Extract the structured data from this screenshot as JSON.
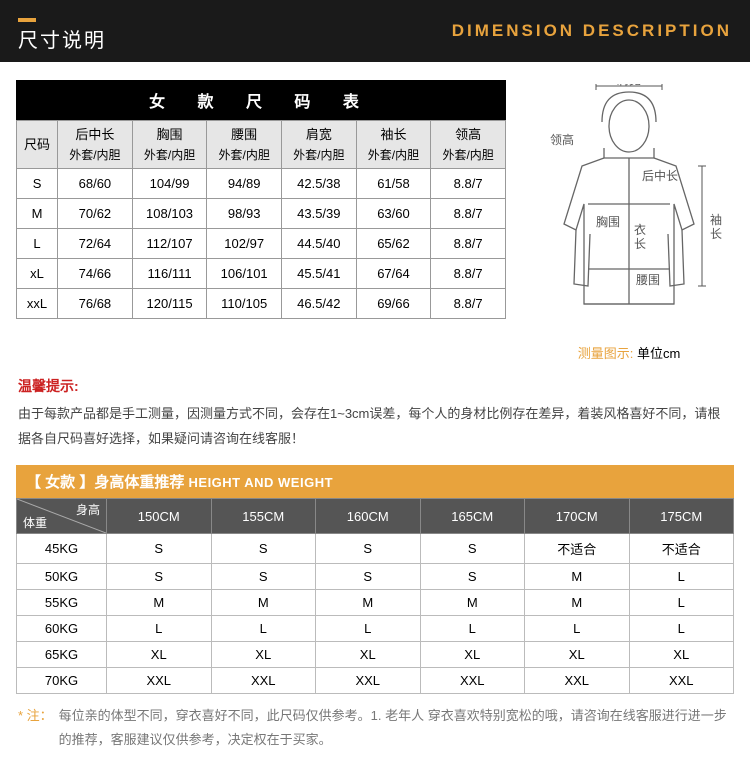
{
  "header": {
    "title_cn": "尺寸说明",
    "title_en": "DIMENSION DESCRIPTION"
  },
  "size_table": {
    "caption": "女 款 尺 码 表",
    "columns": [
      {
        "top": "尺码",
        "sub": ""
      },
      {
        "top": "后中长",
        "sub": "外套/内胆"
      },
      {
        "top": "胸围",
        "sub": "外套/内胆"
      },
      {
        "top": "腰围",
        "sub": "外套/内胆"
      },
      {
        "top": "肩宽",
        "sub": "外套/内胆"
      },
      {
        "top": "袖长",
        "sub": "外套/内胆"
      },
      {
        "top": "领高",
        "sub": "外套/内胆"
      }
    ],
    "rows": [
      [
        "S",
        "68/60",
        "104/99",
        "94/89",
        "42.5/38",
        "61/58",
        "8.8/7"
      ],
      [
        "M",
        "70/62",
        "108/103",
        "98/93",
        "43.5/39",
        "63/60",
        "8.8/7"
      ],
      [
        "L",
        "72/64",
        "112/107",
        "102/97",
        "44.5/40",
        "65/62",
        "8.8/7"
      ],
      [
        "xL",
        "74/66",
        "116/111",
        "106/101",
        "45.5/41",
        "67/64",
        "8.8/7"
      ],
      [
        "xxL",
        "76/68",
        "120/115",
        "110/105",
        "46.5/42",
        "69/66",
        "8.8/7"
      ]
    ]
  },
  "diagram": {
    "labels": {
      "shoulder": "肩宽",
      "collar": "领高",
      "back_length": "后中长",
      "chest": "胸围",
      "body_length": "衣长",
      "sleeve": "袖长",
      "waist": "腰围"
    },
    "caption_prefix": "测量图示:",
    "caption_unit": "单位cm"
  },
  "tip": {
    "title": "温馨提示:",
    "text": "由于每款产品都是手工测量，因测量方式不同，会存在1~3cm误差，每个人的身材比例存在差异，着装风格喜好不同，请根据各自尺码喜好选择，如果疑问请咨询在线客服！"
  },
  "recommend": {
    "bar_cn": "【 女款 】身高体重推荐",
    "bar_en": "HEIGHT AND WEIGHT",
    "diag_height": "身高",
    "diag_weight": "体重",
    "heights": [
      "150CM",
      "155CM",
      "160CM",
      "165CM",
      "170CM",
      "175CM"
    ],
    "weights": [
      "45KG",
      "50KG",
      "55KG",
      "60KG",
      "65KG",
      "70KG"
    ],
    "grid": [
      [
        "S",
        "S",
        "S",
        "S",
        "不适合",
        "不适合"
      ],
      [
        "S",
        "S",
        "S",
        "S",
        "M",
        "L"
      ],
      [
        "M",
        "M",
        "M",
        "M",
        "M",
        "L"
      ],
      [
        "L",
        "L",
        "L",
        "L",
        "L",
        "L"
      ],
      [
        "XL",
        "XL",
        "XL",
        "XL",
        "XL",
        "XL"
      ],
      [
        "XXL",
        "XXL",
        "XXL",
        "XXL",
        "XXL",
        "XXL"
      ]
    ]
  },
  "note": {
    "star": "* 注：",
    "text": "每位亲的体型不同，穿衣喜好不同，此尺码仅供参考。1. 老年人 穿衣喜欢特别宽松的哦，请咨询在线客服进行进一步的推荐，客服建议仅供参考，决定权在于买家。"
  },
  "colors": {
    "accent": "#e8a33d",
    "header_bg": "#1a1a1a",
    "th_bg": "#e6e6e6",
    "border": "#999999",
    "tip_red": "#cc2222",
    "rec_head_bg": "#555555"
  }
}
